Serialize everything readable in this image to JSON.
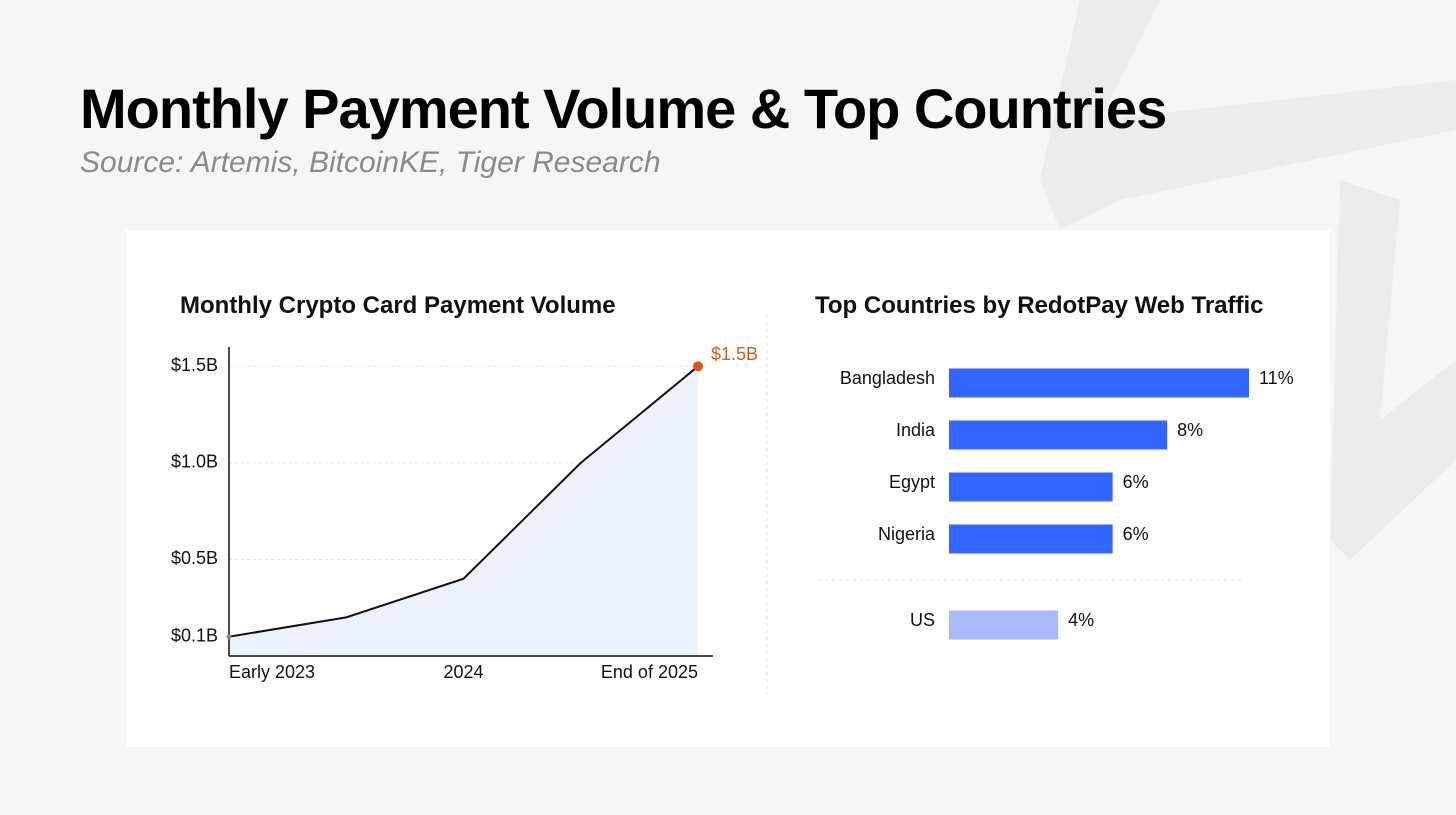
{
  "title": "Monthly Payment Volume & Top Countries",
  "subtitle": "Source: Artemis, BitcoinKE, Tiger Research",
  "chart_data": [
    {
      "type": "line",
      "title": "Monthly Crypto Card Payment Volume",
      "categories": [
        "Early 2023",
        null,
        "2024",
        null,
        "End of 2025"
      ],
      "values": [
        0.1,
        0.2,
        0.4,
        1.0,
        1.5
      ],
      "value_labels": [
        null,
        null,
        null,
        null,
        "$1.5B"
      ],
      "color": "#111111",
      "area_color": "#eef2ff",
      "highlight_color": "#d35a1c",
      "ylim": [
        0,
        1.6
      ],
      "yticks": [
        {
          "value": 0.1,
          "label": "$0.1B"
        },
        {
          "value": 0.5,
          "label": "$0.5B"
        },
        {
          "value": 1.0,
          "label": "$1.0B"
        },
        {
          "value": 1.5,
          "label": "$1.5B"
        }
      ],
      "grid": true
    },
    {
      "type": "hbar",
      "title": "Top Countries by RedotPay Web Traffic",
      "categories": [
        "Bangladesh",
        "India",
        "Egypt",
        "Nigeria",
        "US"
      ],
      "values": [
        11,
        8,
        6,
        6,
        4
      ],
      "value_labels": [
        "11%",
        "8%",
        "6%",
        "6%",
        "4%"
      ],
      "colors": [
        "#3366ff",
        "#3366ff",
        "#3366ff",
        "#3366ff",
        "#a8bafc"
      ]
    }
  ]
}
